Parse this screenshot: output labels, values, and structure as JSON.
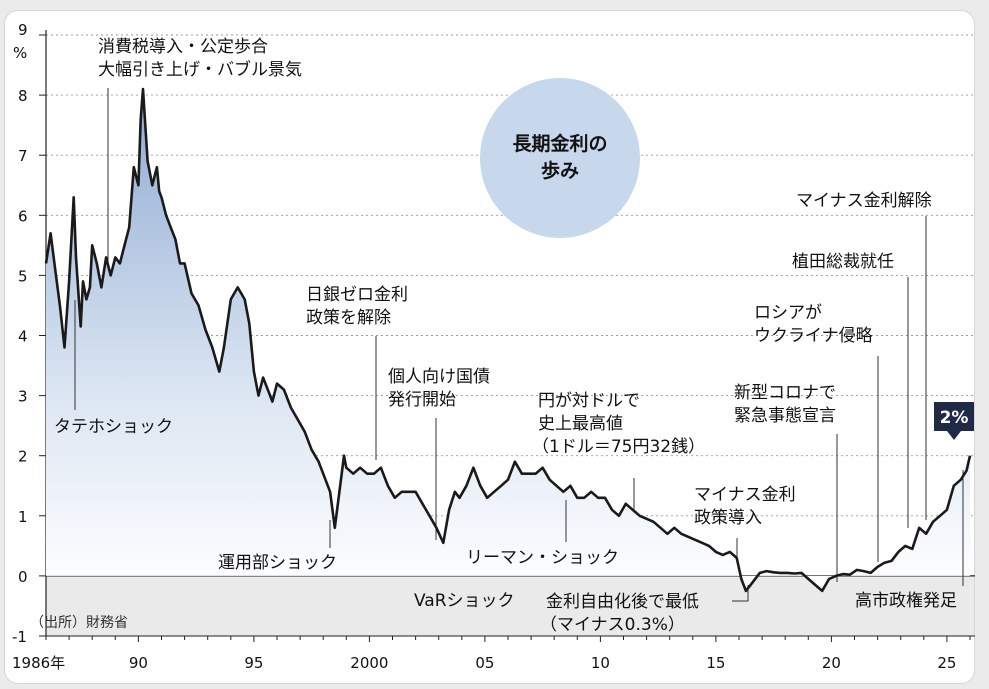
{
  "chart_data": {
    "type": "area",
    "title": "長期金利の歩み",
    "y_unit": "%",
    "ylim": [
      -1,
      9
    ],
    "y_ticks": [
      "-1",
      "0",
      "1",
      "2",
      "3",
      "4",
      "5",
      "6",
      "7",
      "8",
      "9"
    ],
    "x_ticks": [
      {
        "year": 1986,
        "label": "1986年"
      },
      {
        "year": 1990,
        "label": "90"
      },
      {
        "year": 1995,
        "label": "95"
      },
      {
        "year": 2000,
        "label": "2000"
      },
      {
        "year": 2005,
        "label": "05"
      },
      {
        "year": 2010,
        "label": "10"
      },
      {
        "year": 2015,
        "label": "15"
      },
      {
        "year": 2020,
        "label": "20"
      },
      {
        "year": 2025,
        "label": "25"
      }
    ],
    "xlim": [
      1986,
      2026
    ],
    "grid": "horizontal dotted",
    "source": "（出所）財務省",
    "current_value_label": "2%",
    "series": [
      {
        "x": [
          1986.0,
          1986.2,
          1986.4,
          1986.6,
          1986.8,
          1987.0,
          1987.2,
          1987.3,
          1987.5,
          1987.6,
          1987.75,
          1987.9,
          1988.0,
          1988.2,
          1988.4,
          1988.6,
          1988.8,
          1989.0,
          1989.2,
          1989.4,
          1989.6,
          1989.8,
          1990.0,
          1990.1,
          1990.2,
          1990.4,
          1990.6,
          1990.8,
          1990.9,
          1991.0,
          1991.2,
          1991.4,
          1991.6,
          1991.8,
          1992.0,
          1992.3,
          1992.6,
          1992.9,
          1993.2,
          1993.5,
          1993.7,
          1994.0,
          1994.3,
          1994.6,
          1994.8,
          1995.0,
          1995.2,
          1995.4,
          1995.6,
          1995.8,
          1996.0,
          1996.3,
          1996.6,
          1996.9,
          1997.2,
          1997.5,
          1997.8,
          1998.0,
          1998.3,
          1998.5,
          1998.7,
          1998.9,
          1999.0,
          1999.3,
          1999.6,
          1999.9,
          2000.2,
          2000.5,
          2000.8,
          2001.1,
          2001.4,
          2001.7,
          2002.0,
          2002.3,
          2002.6,
          2002.9,
          2003.2,
          2003.45,
          2003.7,
          2003.9,
          2004.2,
          2004.5,
          2004.8,
          2005.1,
          2005.4,
          2005.7,
          2006.0,
          2006.3,
          2006.6,
          2006.9,
          2007.2,
          2007.5,
          2007.8,
          2008.1,
          2008.4,
          2008.7,
          2009.0,
          2009.3,
          2009.6,
          2009.9,
          2010.2,
          2010.5,
          2010.8,
          2011.1,
          2011.4,
          2011.7,
          2012.0,
          2012.3,
          2012.6,
          2012.9,
          2013.2,
          2013.5,
          2013.8,
          2014.1,
          2014.4,
          2014.7,
          2015.0,
          2015.3,
          2015.6,
          2015.9,
          2016.1,
          2016.3,
          2016.6,
          2016.9,
          2017.2,
          2017.5,
          2017.8,
          2018.1,
          2018.4,
          2018.7,
          2019.0,
          2019.3,
          2019.6,
          2019.9,
          2020.2,
          2020.5,
          2020.8,
          2021.1,
          2021.4,
          2021.7,
          2022.0,
          2022.3,
          2022.6,
          2022.9,
          2023.2,
          2023.5,
          2023.8,
          2024.1,
          2024.4,
          2024.7,
          2025.0,
          2025.3,
          2025.6,
          2025.85,
          2026.0
        ],
        "y": [
          5.2,
          5.7,
          5.1,
          4.5,
          3.8,
          4.9,
          6.3,
          5.3,
          4.15,
          4.9,
          4.6,
          4.8,
          5.5,
          5.2,
          4.8,
          5.3,
          5.0,
          5.3,
          5.2,
          5.5,
          5.8,
          6.8,
          6.5,
          7.6,
          8.1,
          6.9,
          6.5,
          6.8,
          6.4,
          6.3,
          6.0,
          5.8,
          5.6,
          5.2,
          5.2,
          4.7,
          4.5,
          4.1,
          3.8,
          3.4,
          3.8,
          4.6,
          4.8,
          4.6,
          4.2,
          3.4,
          3.0,
          3.3,
          3.1,
          2.9,
          3.2,
          3.1,
          2.8,
          2.6,
          2.4,
          2.1,
          1.9,
          1.7,
          1.4,
          0.8,
          1.4,
          2.0,
          1.8,
          1.7,
          1.8,
          1.7,
          1.7,
          1.8,
          1.5,
          1.3,
          1.4,
          1.4,
          1.4,
          1.2,
          1.0,
          0.8,
          0.55,
          1.1,
          1.4,
          1.3,
          1.5,
          1.8,
          1.5,
          1.3,
          1.4,
          1.5,
          1.6,
          1.9,
          1.7,
          1.7,
          1.7,
          1.8,
          1.6,
          1.5,
          1.4,
          1.5,
          1.3,
          1.3,
          1.4,
          1.3,
          1.3,
          1.1,
          1.0,
          1.2,
          1.1,
          1.0,
          0.95,
          0.9,
          0.8,
          0.7,
          0.8,
          0.7,
          0.65,
          0.6,
          0.55,
          0.5,
          0.4,
          0.35,
          0.4,
          0.3,
          -0.05,
          -0.25,
          -0.1,
          0.05,
          0.08,
          0.06,
          0.05,
          0.05,
          0.04,
          0.05,
          -0.05,
          -0.15,
          -0.25,
          -0.05,
          0.0,
          0.03,
          0.02,
          0.1,
          0.08,
          0.05,
          0.15,
          0.22,
          0.25,
          0.4,
          0.5,
          0.45,
          0.8,
          0.7,
          0.9,
          1.0,
          1.1,
          1.5,
          1.6,
          1.75,
          2.0
        ]
      }
    ],
    "annotations": [
      {
        "id": "tateho",
        "lines": [
          "タテホショック"
        ]
      },
      {
        "id": "shohizei",
        "lines": [
          "消費税導入・公定歩合",
          "大幅引き上げ・バブル景気"
        ]
      },
      {
        "id": "unyobu",
        "lines": [
          "運用部ショック"
        ]
      },
      {
        "id": "zero",
        "lines": [
          "日銀ゼロ金利",
          "政策を解除"
        ]
      },
      {
        "id": "kojin",
        "lines": [
          "個人向け国債",
          "発行開始"
        ]
      },
      {
        "id": "var",
        "lines": [
          "VaRショック"
        ]
      },
      {
        "id": "lehman",
        "lines": [
          "リーマン・ショック"
        ]
      },
      {
        "id": "endaka",
        "lines": [
          "円が対ドルで",
          "史上最高値",
          "（1ドル＝75円32銭）"
        ]
      },
      {
        "id": "minus_low",
        "lines": [
          "金利自由化後で最低",
          "（マイナス0.3%）"
        ]
      },
      {
        "id": "minus_policy",
        "lines": [
          "マイナス金利",
          "政策導入"
        ]
      },
      {
        "id": "corona",
        "lines": [
          "新型コロナで",
          "緊急事態宣言"
        ]
      },
      {
        "id": "russia",
        "lines": [
          "ロシアが",
          "ウクライナ侵略"
        ]
      },
      {
        "id": "ueda",
        "lines": [
          "植田総裁就任"
        ]
      },
      {
        "id": "minus_end",
        "lines": [
          "マイナス金利解除"
        ]
      },
      {
        "id": "takaichi",
        "lines": [
          "高市政権発足"
        ]
      }
    ],
    "colors": {
      "line": "#1a1a1a",
      "area_top": "#8eaad3",
      "area_bottom": "#ffffff",
      "negative_band": "#d9d9d9",
      "title_circle": "#c7d7ec",
      "badge": "#1f2a47",
      "grid": "#9a9a9a"
    }
  }
}
